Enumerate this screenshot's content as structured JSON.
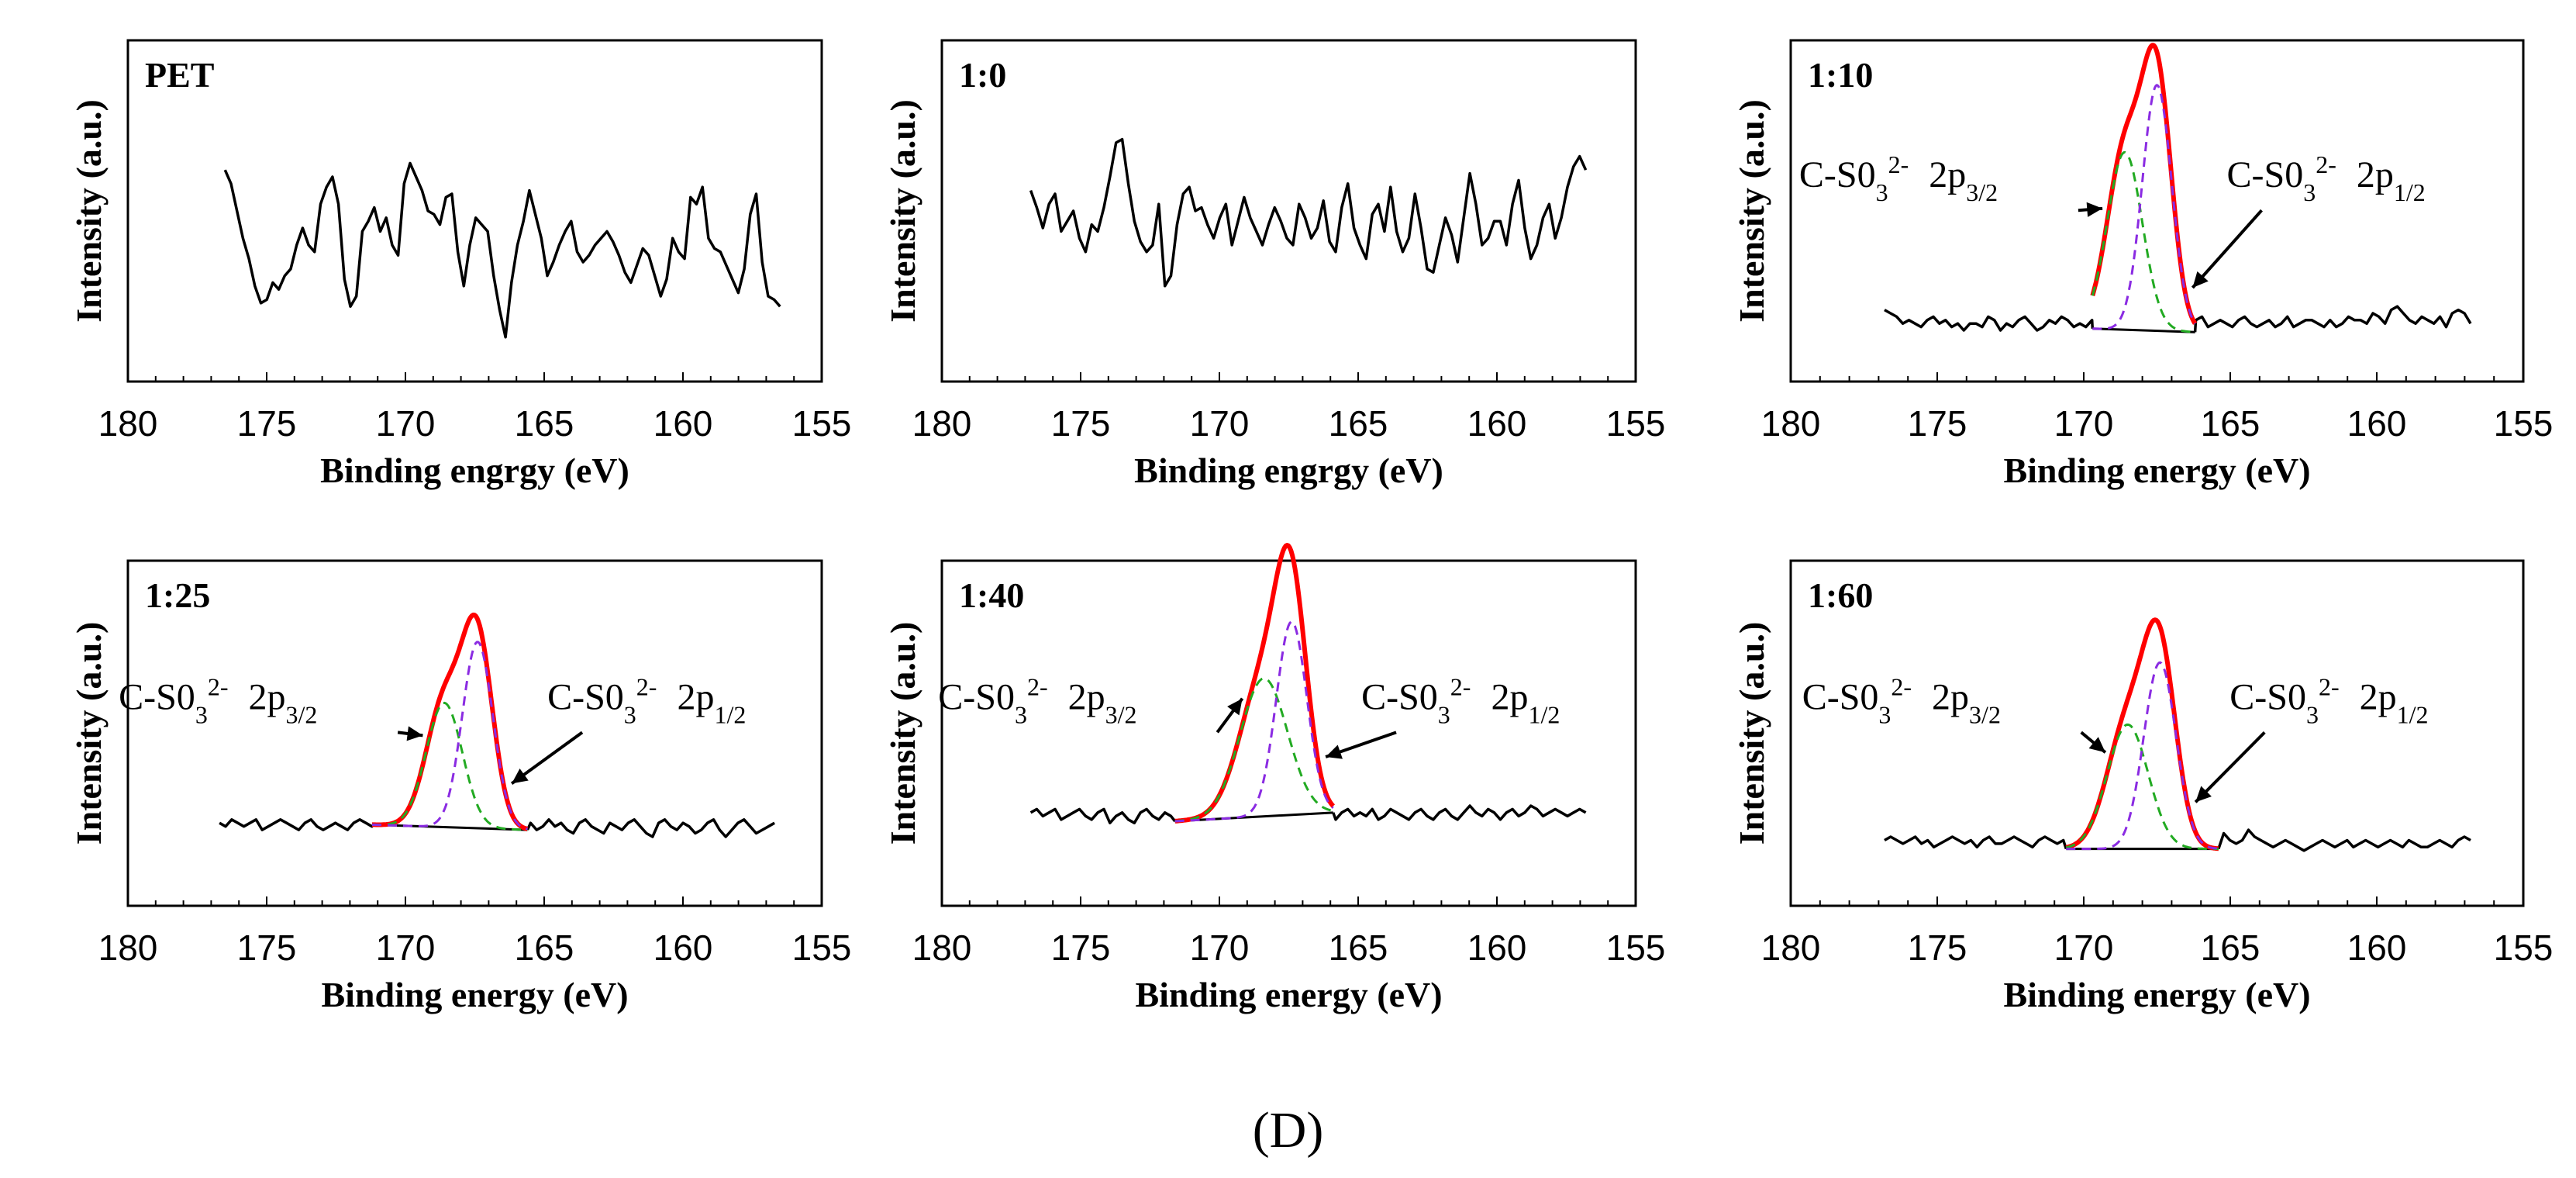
{
  "figure_label": "(D)",
  "colors": {
    "raw": "#000000",
    "envelope": "#ff0000",
    "p32": "#22aa22",
    "p12": "#8a2be2",
    "baseline": "#000000"
  },
  "chart_data": [
    {
      "type": "line",
      "title": "PET",
      "xlabel": "Binding engrgy (eV)",
      "ylabel": "Intensity (a.u.)",
      "xlim": [
        180,
        155
      ],
      "xticks": [
        180,
        175,
        170,
        165,
        160,
        155
      ],
      "ylim": [
        0,
        100
      ],
      "x_start": 176.5,
      "x_end": 156.5,
      "raw_y": [
        62,
        58,
        50,
        42,
        36,
        28,
        23,
        24,
        29,
        27,
        31,
        33,
        40,
        45,
        40,
        38,
        52,
        57,
        60,
        52,
        30,
        22,
        25,
        44,
        47,
        51,
        44,
        48,
        40,
        37,
        58,
        64,
        60,
        56,
        50,
        49,
        46,
        54,
        55,
        38,
        28,
        40,
        48,
        46,
        44,
        31,
        21,
        13,
        29,
        40,
        47,
        56,
        49,
        42,
        31,
        35,
        40,
        44,
        47,
        38,
        35,
        37,
        40,
        42,
        44,
        41,
        37,
        32,
        29,
        34,
        39,
        37,
        31,
        25,
        30,
        42,
        38,
        36,
        54,
        52,
        57,
        42,
        39,
        38,
        34,
        30,
        26,
        33,
        49,
        55,
        35,
        25,
        24,
        22
      ],
      "peaks": null
    },
    {
      "type": "line",
      "title": "1:0",
      "xlabel": "Binding engrgy (eV)",
      "ylabel": "Intensity (a.u.)",
      "xlim": [
        180,
        155
      ],
      "xticks": [
        180,
        175,
        170,
        165,
        160,
        155
      ],
      "ylim": [
        0,
        100
      ],
      "x_start": 176.8,
      "x_end": 156.8,
      "raw_y": [
        56,
        51,
        45,
        52,
        55,
        44,
        47,
        50,
        42,
        38,
        46,
        44,
        51,
        60,
        70,
        71,
        58,
        47,
        41,
        38,
        40,
        52,
        28,
        31,
        46,
        55,
        57,
        50,
        51,
        46,
        42,
        48,
        52,
        40,
        47,
        54,
        48,
        44,
        40,
        46,
        51,
        47,
        42,
        40,
        52,
        48,
        42,
        45,
        53,
        41,
        38,
        51,
        58,
        45,
        40,
        36,
        49,
        52,
        44,
        57,
        44,
        38,
        42,
        55,
        45,
        33,
        32,
        40,
        48,
        43,
        35,
        48,
        61,
        52,
        40,
        42,
        47,
        47,
        40,
        52,
        59,
        45,
        36,
        40,
        48,
        52,
        42,
        48,
        57,
        63,
        66,
        62
      ],
      "peaks": null
    },
    {
      "type": "line",
      "title": "1:10",
      "xlabel": "Binding energy (eV)",
      "ylabel": "Intensity (a.u.)",
      "xlim": [
        180,
        155
      ],
      "xticks": [
        180,
        175,
        170,
        165,
        160,
        155
      ],
      "ylim": [
        0,
        100
      ],
      "x_start": 176.8,
      "x_end": 156.8,
      "raw_y": [
        21,
        20,
        19,
        17,
        18,
        17,
        16,
        18,
        19,
        17,
        18,
        16,
        17,
        15,
        17,
        17,
        16,
        19,
        18,
        15,
        17,
        16,
        18,
        19,
        17,
        15,
        16,
        18,
        17,
        19,
        18,
        16,
        17,
        16,
        18,
        18,
        16,
        17,
        19,
        15,
        17,
        18,
        18,
        16,
        16,
        17,
        19,
        17,
        16,
        15,
        17,
        18,
        19,
        16,
        17,
        18,
        17,
        16,
        18,
        19,
        17,
        16,
        17,
        18,
        16,
        17,
        19,
        16,
        17,
        18,
        18,
        17,
        16,
        18,
        16,
        17,
        19,
        18,
        18,
        17,
        20,
        19,
        17,
        21,
        22,
        20,
        18,
        17,
        19,
        18,
        17,
        19,
        16,
        20,
        21,
        20,
        17
      ],
      "peaks": {
        "baseline": {
          "from": 169.7,
          "to": 166.2,
          "y_from": 15.5,
          "y_to": 14.5
        },
        "p32": {
          "label": "C-S0",
          "sub": "3",
          "sup": "2-",
          "orbital": "2p",
          "orb_sub": "3/2",
          "center": 168.6,
          "height": 52,
          "width": 0.6
        },
        "p12": {
          "label": "C-S0",
          "sub": "3",
          "sup": "2-",
          "orbital": "2p",
          "orb_sub": "1/2",
          "center": 167.5,
          "height": 72,
          "width": 0.5
        }
      }
    },
    {
      "type": "line",
      "title": "1:25",
      "xlabel": "Binding energy (eV)",
      "ylabel": "Intensity (a.u.)",
      "xlim": [
        180,
        155
      ],
      "xticks": [
        180,
        175,
        170,
        165,
        160,
        155
      ],
      "ylim": [
        0,
        100
      ],
      "x_start": 176.7,
      "x_end": 156.7,
      "raw_y": [
        24,
        23,
        25,
        24,
        23,
        24,
        25,
        22,
        23,
        24,
        25,
        24,
        23,
        22,
        24,
        25,
        23,
        22,
        23,
        24,
        23,
        22,
        24,
        25,
        24,
        23,
        24,
        22,
        23,
        24,
        25,
        23,
        24,
        22,
        23,
        24,
        23,
        25,
        24,
        22,
        21,
        23,
        24,
        25,
        23,
        22,
        24,
        23,
        21,
        23,
        25,
        24,
        22,
        23,
        25,
        23,
        24,
        22,
        21,
        24,
        25,
        23,
        22,
        21,
        24,
        23,
        22,
        24,
        25,
        23,
        21,
        20,
        24,
        25,
        23,
        22,
        24,
        23,
        21,
        22,
        24,
        25,
        22,
        20,
        22,
        24,
        25,
        23,
        21,
        22,
        23,
        24
      ],
      "peaks": {
        "baseline": {
          "from": 171.2,
          "to": 165.6,
          "y_from": 23.5,
          "y_to": 22
        },
        "p32": {
          "label": "C-S0",
          "sub": "3",
          "sup": "2-",
          "orbital": "2p",
          "orb_sub": "3/2",
          "center": 168.6,
          "height": 36,
          "width": 0.65
        },
        "p12": {
          "label": "C-S0",
          "sub": "3",
          "sup": "2-",
          "orbital": "2p",
          "orb_sub": "1/2",
          "center": 167.4,
          "height": 54,
          "width": 0.55
        }
      }
    },
    {
      "type": "line",
      "title": "1:40",
      "xlabel": "Binding energy (eV)",
      "ylabel": "Intensity (a.u.)",
      "xlim": [
        180,
        155
      ],
      "xticks": [
        180,
        175,
        170,
        165,
        160,
        155
      ],
      "ylim": [
        0,
        100
      ],
      "x_start": 176.8,
      "x_end": 156.8,
      "raw_y": [
        27,
        28,
        26,
        27,
        28,
        25,
        26,
        27,
        28,
        26,
        25,
        27,
        28,
        24,
        26,
        27,
        25,
        24,
        27,
        28,
        26,
        25,
        27,
        26,
        24,
        26,
        28,
        27,
        25,
        26,
        27,
        28,
        26,
        25,
        27,
        28,
        26,
        27,
        25,
        26,
        28,
        27,
        25,
        26,
        27,
        28,
        26,
        25,
        27,
        26,
        25,
        27,
        28,
        26,
        27,
        26,
        28,
        25,
        26,
        28,
        27,
        26,
        25,
        27,
        28,
        26,
        25,
        27,
        28,
        26,
        25,
        27,
        29,
        27,
        26,
        28,
        27,
        25,
        27,
        28,
        26,
        27,
        29,
        28,
        26,
        27,
        28,
        27,
        26,
        27,
        28,
        27
      ],
      "peaks": {
        "baseline": {
          "from": 171.6,
          "to": 165.9,
          "y_from": 24.5,
          "y_to": 27
        },
        "p32": {
          "label": "C-S0",
          "sub": "3",
          "sup": "2-",
          "orbital": "2p",
          "orb_sub": "3/2",
          "center": 168.4,
          "height": 40,
          "width": 0.85
        },
        "p12": {
          "label": "C-S0",
          "sub": "3",
          "sup": "2-",
          "orbital": "2p",
          "orb_sub": "1/2",
          "center": 167.4,
          "height": 56,
          "width": 0.55
        }
      }
    },
    {
      "type": "line",
      "title": "1:60",
      "xlabel": "Binding energy (eV)",
      "ylabel": "Intensity (a.u.)",
      "xlim": [
        180,
        155
      ],
      "xticks": [
        180,
        175,
        170,
        165,
        160,
        155
      ],
      "ylim": [
        0,
        100
      ],
      "x_start": 176.8,
      "x_end": 156.8,
      "raw_y": [
        19,
        20,
        19,
        18,
        19,
        20,
        18,
        19,
        17,
        18,
        19,
        20,
        19,
        18,
        19,
        17,
        19,
        20,
        18,
        18,
        19,
        20,
        19,
        18,
        17,
        19,
        20,
        19,
        18,
        19,
        18,
        19,
        17,
        18,
        19,
        18,
        19,
        20,
        18,
        17,
        18,
        19,
        18,
        19,
        17,
        18,
        19,
        20,
        19,
        18,
        19,
        18,
        17,
        19,
        20,
        21,
        19,
        18,
        19,
        22,
        20,
        19,
        18,
        17,
        18,
        19,
        18,
        17,
        16,
        17,
        18,
        19,
        18,
        17,
        18,
        19,
        17,
        18,
        19,
        18,
        17,
        18,
        19,
        18,
        17,
        19,
        18,
        17,
        17,
        18,
        19,
        18,
        17,
        19,
        20,
        19
      ],
      "peaks": {
        "baseline": {
          "from": 170.6,
          "to": 165.4,
          "y_from": 16.5,
          "y_to": 16.5
        },
        "p32": {
          "label": "C-S0",
          "sub": "3",
          "sup": "2-",
          "orbital": "2p",
          "orb_sub": "3/2",
          "center": 168.5,
          "height": 36,
          "width": 0.7
        },
        "p12": {
          "label": "C-S0",
          "sub": "3",
          "sup": "2-",
          "orbital": "2p",
          "orb_sub": "1/2",
          "center": 167.4,
          "height": 54,
          "width": 0.55
        }
      }
    }
  ]
}
